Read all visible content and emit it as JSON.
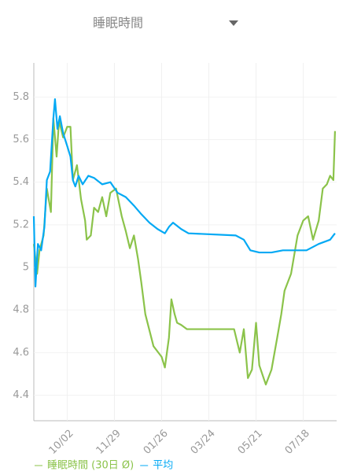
{
  "chart_data": {
    "type": "line",
    "title": "睡眠時間",
    "xlim": [
      0,
      372
    ],
    "xticks": [
      {
        "value": 41,
        "label": "10/02"
      },
      {
        "value": 99,
        "label": "11/29"
      },
      {
        "value": 157,
        "label": "01/26"
      },
      {
        "value": 215,
        "label": "03/24"
      },
      {
        "value": 273,
        "label": "05/21"
      },
      {
        "value": 331,
        "label": "07/18"
      }
    ],
    "ylim": [
      4.28,
      5.96
    ],
    "yticks": [
      4.4,
      4.6,
      4.8,
      5,
      5.2,
      5.4,
      5.6,
      5.8
    ],
    "grid": true,
    "series": [
      {
        "name": "睡眠時間 (30日 Ø)",
        "color": "#8bc34a",
        "x": [
          0,
          4,
          7,
          12,
          16,
          21,
          24,
          28,
          31,
          36,
          41,
          45,
          48,
          53,
          58,
          63,
          65,
          70,
          74,
          79,
          84,
          89,
          94,
          101,
          108,
          113,
          118,
          123,
          128,
          132,
          137,
          147,
          157,
          161,
          166,
          169,
          173,
          176,
          181,
          188,
          246,
          253,
          258,
          263,
          268,
          273,
          277,
          285,
          292,
          299,
          304,
          308,
          316,
          324,
          331,
          337,
          343,
          350,
          355,
          360,
          364,
          368,
          370
        ],
        "values": [
          5.11,
          4.97,
          5.08,
          5.15,
          5.37,
          5.26,
          5.7,
          5.52,
          5.69,
          5.61,
          5.66,
          5.66,
          5.41,
          5.48,
          5.32,
          5.22,
          5.13,
          5.15,
          5.28,
          5.26,
          5.33,
          5.24,
          5.35,
          5.37,
          5.24,
          5.17,
          5.09,
          5.15,
          5.04,
          4.93,
          4.78,
          4.63,
          4.58,
          4.53,
          4.67,
          4.85,
          4.78,
          4.74,
          4.73,
          4.71,
          4.71,
          4.6,
          4.71,
          4.48,
          4.52,
          4.74,
          4.54,
          4.45,
          4.52,
          4.67,
          4.78,
          4.89,
          4.97,
          5.15,
          5.22,
          5.24,
          5.13,
          5.22,
          5.37,
          5.39,
          5.43,
          5.41,
          5.64
        ]
      },
      {
        "name": "平均",
        "color": "#03a9f4",
        "x": [
          0,
          2,
          5,
          9,
          13,
          16,
          20,
          24,
          26,
          29,
          32,
          36,
          41,
          45,
          48,
          51,
          55,
          60,
          67,
          74,
          84,
          94,
          103,
          113,
          123,
          132,
          142,
          152,
          161,
          166,
          171,
          181,
          190,
          248,
          258,
          266,
          277,
          292,
          306,
          321,
          335,
          350,
          364,
          370
        ],
        "values": [
          5.24,
          4.91,
          5.11,
          5.08,
          5.19,
          5.41,
          5.45,
          5.7,
          5.79,
          5.65,
          5.71,
          5.63,
          5.57,
          5.52,
          5.41,
          5.38,
          5.43,
          5.39,
          5.43,
          5.42,
          5.39,
          5.4,
          5.35,
          5.33,
          5.29,
          5.25,
          5.21,
          5.18,
          5.16,
          5.19,
          5.21,
          5.18,
          5.16,
          5.15,
          5.13,
          5.08,
          5.07,
          5.07,
          5.08,
          5.08,
          5.08,
          5.11,
          5.13,
          5.16
        ]
      }
    ]
  }
}
